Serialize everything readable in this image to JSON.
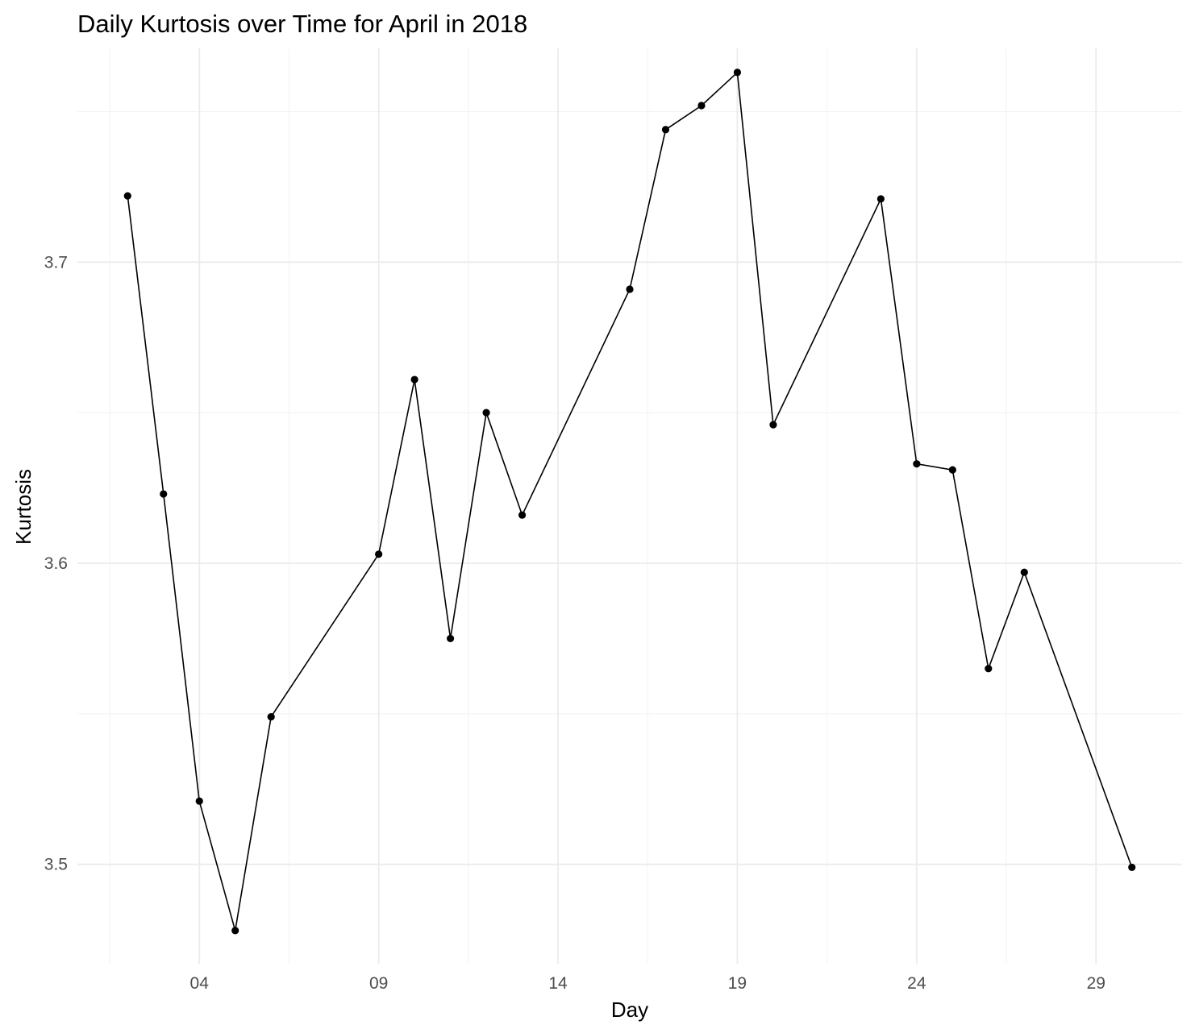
{
  "chart_data": {
    "type": "line",
    "title": "Daily Kurtosis over Time for April in 2018",
    "xlabel": "Day",
    "ylabel": "Kurtosis",
    "x_ticks": [
      {
        "day": 4,
        "label": "04"
      },
      {
        "day": 9,
        "label": "09"
      },
      {
        "day": 14,
        "label": "14"
      },
      {
        "day": 19,
        "label": "19"
      },
      {
        "day": 24,
        "label": "24"
      },
      {
        "day": 29,
        "label": "29"
      }
    ],
    "y_ticks": [
      {
        "value": 3.5,
        "label": "3.5"
      },
      {
        "value": 3.6,
        "label": "3.6"
      },
      {
        "value": 3.7,
        "label": "3.7"
      }
    ],
    "xlim": [
      0.6,
      31.4
    ],
    "ylim": [
      3.467,
      3.771
    ],
    "grid": true,
    "legend": "none",
    "line_color": "#000000",
    "series": [
      {
        "points": [
          {
            "day": 2,
            "value": 3.722
          },
          {
            "day": 3,
            "value": 3.623
          },
          {
            "day": 4,
            "value": 3.521
          },
          {
            "day": 5,
            "value": 3.478
          },
          {
            "day": 6,
            "value": 3.549
          },
          {
            "day": 9,
            "value": 3.603
          },
          {
            "day": 10,
            "value": 3.661
          },
          {
            "day": 11,
            "value": 3.575
          },
          {
            "day": 12,
            "value": 3.65
          },
          {
            "day": 13,
            "value": 3.616
          },
          {
            "day": 16,
            "value": 3.691
          },
          {
            "day": 17,
            "value": 3.744
          },
          {
            "day": 18,
            "value": 3.752
          },
          {
            "day": 19,
            "value": 3.763
          },
          {
            "day": 20,
            "value": 3.646
          },
          {
            "day": 23,
            "value": 3.721
          },
          {
            "day": 24,
            "value": 3.633
          },
          {
            "day": 25,
            "value": 3.631
          },
          {
            "day": 26,
            "value": 3.565
          },
          {
            "day": 27,
            "value": 3.597
          },
          {
            "day": 30,
            "value": 3.499
          }
        ]
      }
    ]
  }
}
